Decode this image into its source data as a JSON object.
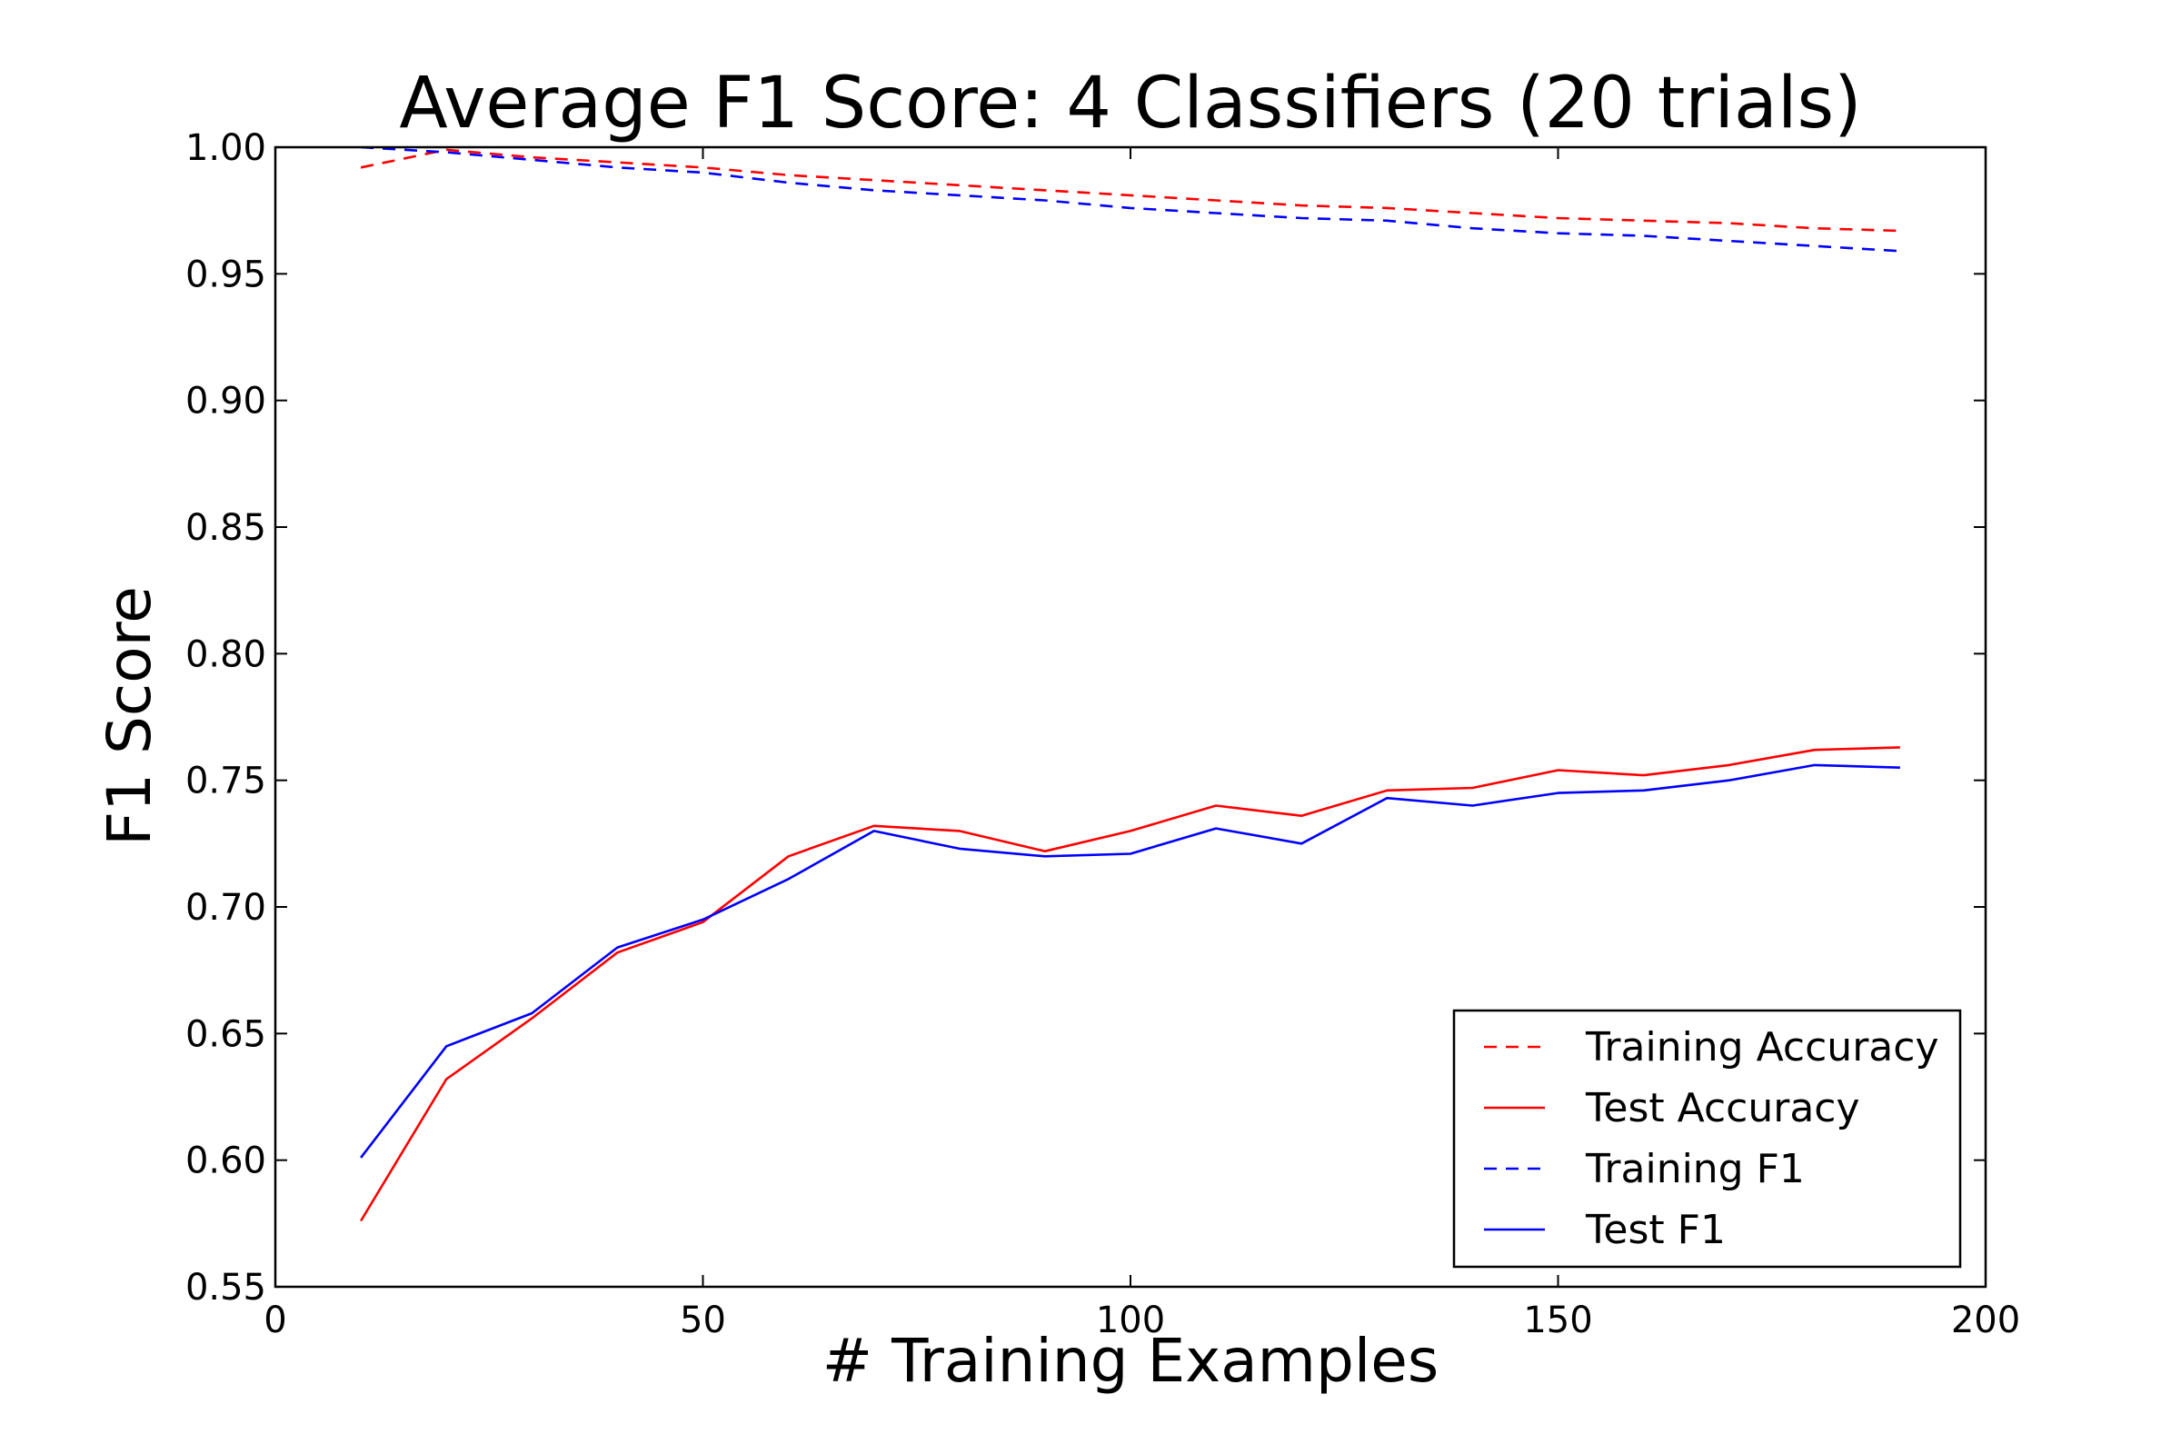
{
  "chart_data": {
    "type": "line",
    "title": "Average F1 Score: 4 Classifiers (20 trials)",
    "xlabel": "# Training Examples",
    "ylabel": "F1 Score",
    "xlim": [
      0,
      200
    ],
    "ylim": [
      0.55,
      1.0
    ],
    "xticks": [
      0,
      50,
      100,
      150,
      200
    ],
    "xtick_labels": [
      "0",
      "50",
      "100",
      "150",
      "200"
    ],
    "yticks": [
      0.55,
      0.6,
      0.65,
      0.7,
      0.75,
      0.8,
      0.85,
      0.9,
      0.95,
      1.0
    ],
    "ytick_labels": [
      "0.55",
      "0.60",
      "0.65",
      "0.70",
      "0.75",
      "0.80",
      "0.85",
      "0.90",
      "0.95",
      "1.00"
    ],
    "grid": false,
    "legend_position": "bottom-right",
    "x": [
      10,
      20,
      30,
      40,
      50,
      60,
      70,
      80,
      90,
      100,
      110,
      120,
      130,
      140,
      150,
      160,
      170,
      180,
      190
    ],
    "series": [
      {
        "name": "Training Accuracy",
        "color": "#ff0000",
        "dashed": true,
        "values": [
          0.992,
          0.999,
          0.996,
          0.994,
          0.992,
          0.989,
          0.987,
          0.985,
          0.983,
          0.981,
          0.979,
          0.977,
          0.976,
          0.974,
          0.972,
          0.971,
          0.97,
          0.968,
          0.967
        ]
      },
      {
        "name": "Test Accuracy",
        "color": "#ff0000",
        "dashed": false,
        "values": [
          0.576,
          0.632,
          0.656,
          0.682,
          0.694,
          0.72,
          0.732,
          0.73,
          0.722,
          0.73,
          0.74,
          0.736,
          0.746,
          0.747,
          0.754,
          0.752,
          0.756,
          0.762,
          0.763
        ]
      },
      {
        "name": "Training F1",
        "color": "#0000ff",
        "dashed": true,
        "values": [
          1.0,
          0.998,
          0.995,
          0.992,
          0.99,
          0.986,
          0.983,
          0.981,
          0.979,
          0.976,
          0.974,
          0.972,
          0.971,
          0.968,
          0.966,
          0.965,
          0.963,
          0.961,
          0.959
        ]
      },
      {
        "name": "Test F1",
        "color": "#0000ff",
        "dashed": false,
        "values": [
          0.601,
          0.645,
          0.658,
          0.684,
          0.695,
          0.711,
          0.73,
          0.723,
          0.72,
          0.721,
          0.731,
          0.725,
          0.743,
          0.74,
          0.745,
          0.746,
          0.75,
          0.756,
          0.755
        ]
      }
    ]
  }
}
